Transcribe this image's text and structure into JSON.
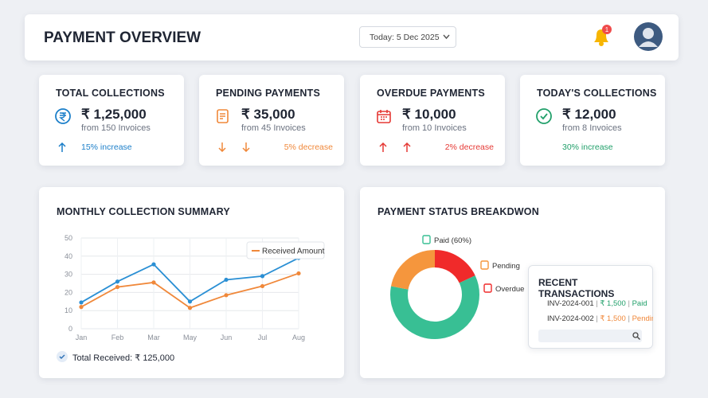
{
  "header": {
    "title": "PAYMENT OVERVIEW",
    "date": "Today: 5 Dec 2025",
    "notifications": "1"
  },
  "cards": [
    {
      "title": "TOTAL COLLECTIONS",
      "amount": "₹ 1,25,000",
      "invoices": "from 150 Invoices",
      "change": "15% increase"
    },
    {
      "title": "PENDING PAYMENTS",
      "amount": "₹ 35,000",
      "invoices": "from 45 Invoices",
      "change": "5% decrease"
    },
    {
      "title": "OVERDUE PAYMENTS",
      "amount": "₹ 10,000",
      "invoices": "from 10 Invoices",
      "change": "2% decrease"
    },
    {
      "title": "TODAY'S COLLECTIONS",
      "amount": "₹ 12,000",
      "invoices": "from 8 Invoices",
      "change": "30% increase"
    }
  ],
  "monthly": {
    "title": "MONTHLY COLLECTION SUMMARY",
    "total": "Total Received: ₹ 125,000",
    "chart_data": {
      "type": "line",
      "categories": [
        "Jan",
        "Feb",
        "Mar",
        "May",
        "Jun",
        "Jul",
        "Aug"
      ],
      "ylim": [
        0,
        50
      ],
      "yticks": [
        0,
        10,
        20,
        30,
        40,
        50
      ],
      "grid": true,
      "series": [
        {
          "color": "#2a8fd4",
          "values": [
            14.5,
            26,
            35.5,
            15,
            27,
            29,
            39
          ]
        },
        {
          "name": "Received Amount",
          "color": "#f0883a",
          "values": [
            12,
            23,
            25.5,
            11.5,
            18.5,
            23.5,
            30.5
          ]
        }
      ]
    }
  },
  "breakdown": {
    "title": "PAYMENT STATUS BREAKDWON",
    "chart_data": {
      "type": "pie",
      "categories": [
        "Overdue",
        "Paid (60%)",
        "Pending"
      ],
      "values": [
        18,
        60,
        22
      ],
      "colors": [
        "#f02a2a",
        "#38bf94",
        "#f5963d"
      ]
    }
  },
  "transactions": {
    "title": "RECENT TRANSACTIONS",
    "rows": [
      [
        "INV-2024-001",
        "₹ 1,500",
        "Paid"
      ],
      [
        "INV-2024-002",
        "₹ 1,500",
        "Pending"
      ]
    ]
  }
}
